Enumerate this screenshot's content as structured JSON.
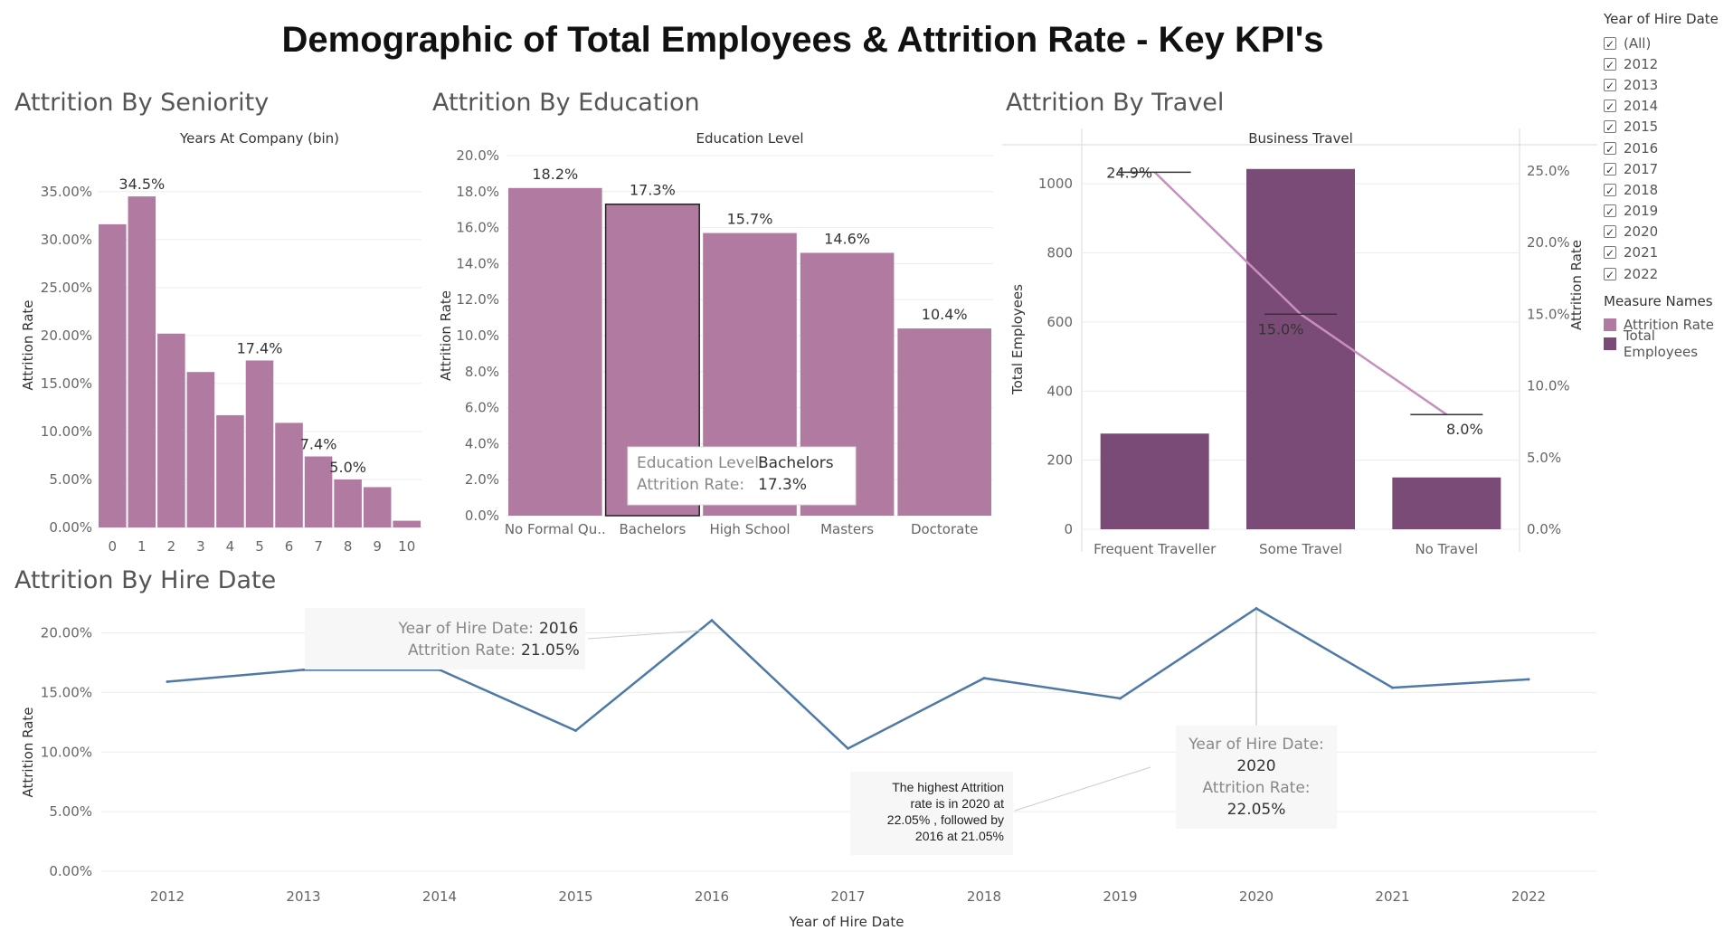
{
  "title": "Demographic of Total Employees & Attrition Rate - Key KPI's",
  "colors": {
    "attrition": "#b07aa1",
    "employees": "#7b4b77",
    "line_trend": "#c68fbe",
    "hire_line": "#4e79a7"
  },
  "filters": {
    "title": "Year of Hire Date",
    "items": [
      "(All)",
      "2012",
      "2013",
      "2014",
      "2015",
      "2016",
      "2017",
      "2018",
      "2019",
      "2020",
      "2021",
      "2022"
    ],
    "checkmark": "✓"
  },
  "measure_legend": {
    "title": "Measure Names",
    "items": [
      {
        "label": "Attrition Rate",
        "color": "#b07aa1"
      },
      {
        "label": "Total Employees",
        "color": "#7b4b77"
      }
    ]
  },
  "sheets": {
    "seniority": {
      "title": "Attrition By Seniority"
    },
    "education": {
      "title": "Attrition By Education"
    },
    "travel": {
      "title": "Attrition By Travel"
    },
    "hire": {
      "title": "Attrition By Hire Date"
    }
  },
  "chart_data": [
    {
      "type": "bar",
      "title": "Attrition By Seniority",
      "header": "Years At Company (bin)",
      "ylabel": "Attrition Rate",
      "categories": [
        "0",
        "1",
        "2",
        "3",
        "4",
        "5",
        "6",
        "7",
        "8",
        "9",
        "10"
      ],
      "values": [
        31.6,
        34.5,
        20.2,
        16.2,
        11.7,
        17.4,
        10.9,
        7.4,
        5.0,
        4.2,
        0.7
      ],
      "data_labels": {
        "1": "34.5%",
        "5": "17.4%",
        "7": "7.4%",
        "8": "5.0%"
      },
      "yticks": [
        "0.00%",
        "5.00%",
        "10.00%",
        "15.00%",
        "20.00%",
        "25.00%",
        "30.00%",
        "35.00%"
      ],
      "ylim": [
        0,
        38
      ]
    },
    {
      "type": "bar",
      "title": "Attrition By Education",
      "header": "Education Level",
      "ylabel": "Attrition Rate",
      "categories": [
        "No Formal Qu..",
        "Bachelors",
        "High School",
        "Masters",
        "Doctorate"
      ],
      "values": [
        18.2,
        17.3,
        15.7,
        14.6,
        10.4
      ],
      "data_labels": [
        "18.2%",
        "17.3%",
        "15.7%",
        "14.6%",
        "10.4%"
      ],
      "yticks": [
        "0.0%",
        "2.0%",
        "4.0%",
        "6.0%",
        "8.0%",
        "10.0%",
        "12.0%",
        "14.0%",
        "16.0%",
        "18.0%",
        "20.0%"
      ],
      "ylim": [
        0,
        20
      ],
      "tooltip": {
        "key1": "Education Level:",
        "val1": "Bachelors",
        "key2": "Attrition Rate:",
        "val2": "17.3%"
      }
    },
    {
      "type": "bar",
      "title": "Attrition By Travel",
      "header": "Business Travel",
      "ylabel": "Total Employees",
      "y2label": "Attrition Rate",
      "categories": [
        "Frequent Traveller",
        "Some Travel",
        "No Travel"
      ],
      "series": [
        {
          "name": "Total Employees",
          "values": [
            277,
            1043,
            150
          ]
        },
        {
          "name": "Attrition Rate",
          "values": [
            24.9,
            15.0,
            8.0
          ]
        }
      ],
      "data_labels": [
        "24.9%",
        "15.0%",
        "8.0%"
      ],
      "yticks": [
        "0",
        "200",
        "400",
        "600",
        "800",
        "1000"
      ],
      "y2ticks": [
        "0.0%",
        "5.0%",
        "10.0%",
        "15.0%",
        "20.0%",
        "25.0%"
      ],
      "ylim": [
        0,
        1100
      ],
      "y2lim": [
        0,
        26.5
      ]
    },
    {
      "type": "line",
      "title": "Attrition By Hire Date",
      "xlabel": "Year of Hire Date",
      "ylabel": "Attrition Rate",
      "x": [
        "2012",
        "2013",
        "2014",
        "2015",
        "2016",
        "2017",
        "2018",
        "2019",
        "2020",
        "2021",
        "2022"
      ],
      "values": [
        15.9,
        16.9,
        16.9,
        11.8,
        21.05,
        10.3,
        16.2,
        14.5,
        22.05,
        15.4,
        16.1
      ],
      "yticks": [
        "0.00%",
        "5.00%",
        "10.00%",
        "15.00%",
        "20.00%"
      ],
      "ylim": [
        0,
        23
      ],
      "tooltip_2016": {
        "key1": "Year of Hire Date:",
        "val1": "2016",
        "key2": "Attrition Rate:",
        "val2": "21.05%"
      },
      "tooltip_2020": {
        "key1": "Year of Hire Date:",
        "val1": "2020",
        "key2": "Attrition Rate:",
        "val2": "22.05%"
      },
      "annotation": [
        "The highest Attrition",
        "rate is in 2020 at",
        "22.05% , followed by",
        "2016 at 21.05%"
      ]
    }
  ]
}
